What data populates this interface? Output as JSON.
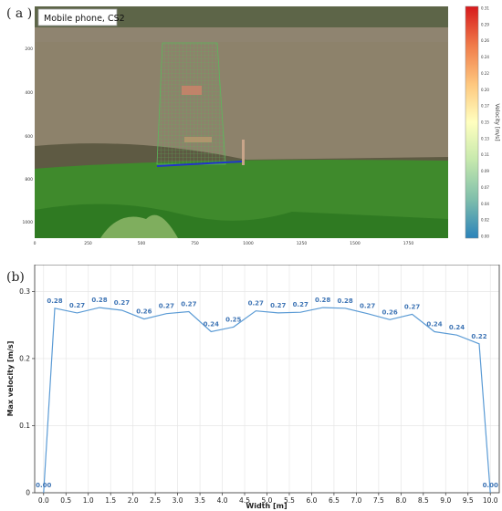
{
  "panel_a": {
    "label": "( a )",
    "caption": "Mobile phone, CS2",
    "y_ticks": [
      "200",
      "400",
      "600",
      "800",
      "1000"
    ],
    "x_ticks": [
      "0",
      "250",
      "500",
      "750",
      "1000",
      "1250",
      "1500",
      "1750"
    ],
    "colorbar": {
      "label": "Velocity [m/s]",
      "ticks": [
        "0.31",
        "0.29",
        "0.26",
        "0.24",
        "0.22",
        "0.20",
        "0.17",
        "0.15",
        "0.13",
        "0.11",
        "0.09",
        "0.07",
        "0.04",
        "0.02",
        "0.00"
      ],
      "colors": [
        "#d7191c",
        "#f07c4a",
        "#fec980",
        "#ffffbf",
        "#c7e9ad",
        "#80bfab",
        "#2b83ba"
      ]
    },
    "colors": {
      "sky_bank": "#5f6a4a",
      "water": "#8a7f66",
      "grass": "#3d8a2a",
      "grid": "#5cb85c",
      "roi_line": "#2233cc"
    }
  },
  "panel_b": {
    "label": "(b)"
  },
  "chart_data": {
    "type": "line",
    "title": "",
    "xlabel": "Width [m]",
    "ylabel": "Max velocity [m/s]",
    "xlim": [
      -0.2,
      10.2
    ],
    "ylim": [
      0,
      0.34
    ],
    "x_ticks": [
      "0.0",
      "0.5",
      "1.0",
      "1.5",
      "2.0",
      "2.5",
      "3.0",
      "3.5",
      "4.0",
      "4.5",
      "5.0",
      "5.5",
      "6.0",
      "6.5",
      "7.0",
      "7.5",
      "8.0",
      "8.5",
      "9.0",
      "9.5",
      "10.0"
    ],
    "y_ticks": [
      "0",
      "0.1",
      "0.2",
      "0.3"
    ],
    "grid": true,
    "line_color": "#5b9bd5",
    "label_color": "#3f75b5",
    "x": [
      0.0,
      0.25,
      0.75,
      1.25,
      1.75,
      2.25,
      2.75,
      3.25,
      3.75,
      4.25,
      4.75,
      5.25,
      5.75,
      6.25,
      6.75,
      7.25,
      7.75,
      8.25,
      8.75,
      9.25,
      9.75,
      10.0
    ],
    "values": [
      0.0,
      0.275,
      0.268,
      0.276,
      0.272,
      0.259,
      0.267,
      0.27,
      0.24,
      0.247,
      0.271,
      0.268,
      0.269,
      0.276,
      0.275,
      0.267,
      0.258,
      0.266,
      0.24,
      0.235,
      0.222,
      0.0
    ],
    "labels": [
      "0.00",
      "0.28",
      "0.27",
      "0.28",
      "0.27",
      "0.26",
      "0.27",
      "0.27",
      "0.24",
      "0.25",
      "0.27",
      "0.27",
      "0.27",
      "0.28",
      "0.28",
      "0.27",
      "0.26",
      "0.27",
      "0.24",
      "0.24",
      "0.22",
      "0.00"
    ]
  }
}
